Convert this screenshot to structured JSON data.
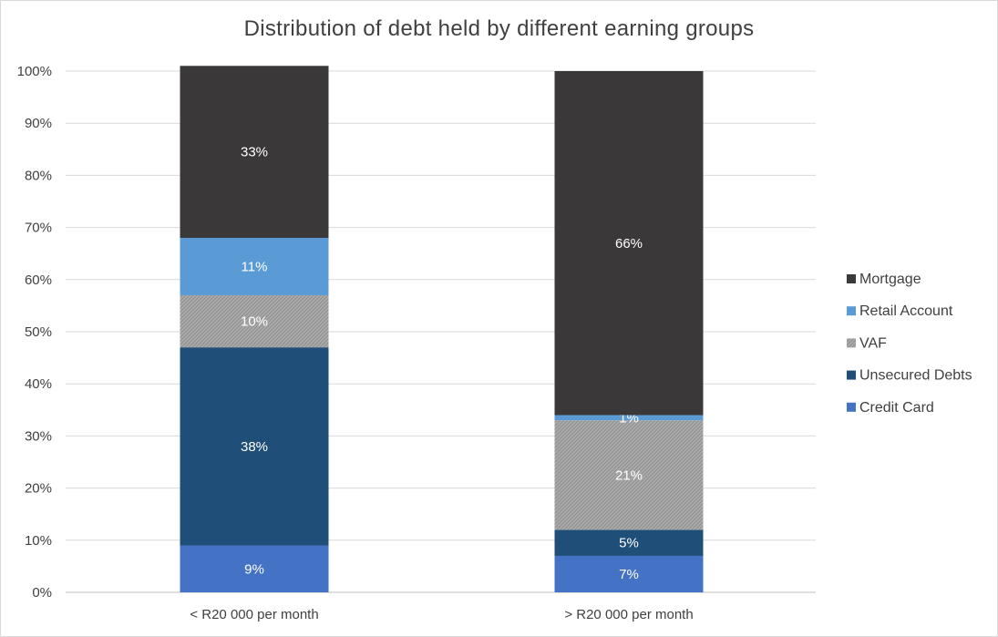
{
  "chart_data": {
    "type": "bar",
    "stacked": true,
    "percent_stacked": true,
    "title": "Distribution of debt held by different earning groups",
    "categories": [
      "< R20 000 per month",
      "> R20 000 per month"
    ],
    "series": [
      {
        "name": "Credit Card",
        "color": "#4472C4",
        "values": [
          9,
          7
        ],
        "labels": [
          "9%",
          "7%"
        ]
      },
      {
        "name": "Unsecured Debts",
        "color": "#1F4E79",
        "values": [
          38,
          5
        ],
        "labels": [
          "38%",
          "5%"
        ]
      },
      {
        "name": "VAF",
        "color": "#A5A5A5",
        "pattern": "hatched",
        "values": [
          10,
          21
        ],
        "labels": [
          "10%",
          "21%"
        ]
      },
      {
        "name": "Retail Account",
        "color": "#5B9BD5",
        "values": [
          11,
          1
        ],
        "labels": [
          "11%",
          "1%"
        ]
      },
      {
        "name": "Mortgage",
        "color": "#3A3838",
        "values": [
          33,
          66
        ],
        "labels": [
          "33%",
          "66%"
        ]
      }
    ],
    "ylim": [
      0,
      100
    ],
    "yticks": [
      "0%",
      "10%",
      "20%",
      "30%",
      "40%",
      "50%",
      "60%",
      "70%",
      "80%",
      "90%",
      "100%"
    ],
    "grid": true,
    "legend_position": "right",
    "legend_order": [
      "Mortgage",
      "Retail Account",
      "VAF",
      "Unsecured Debts",
      "Credit Card"
    ]
  }
}
